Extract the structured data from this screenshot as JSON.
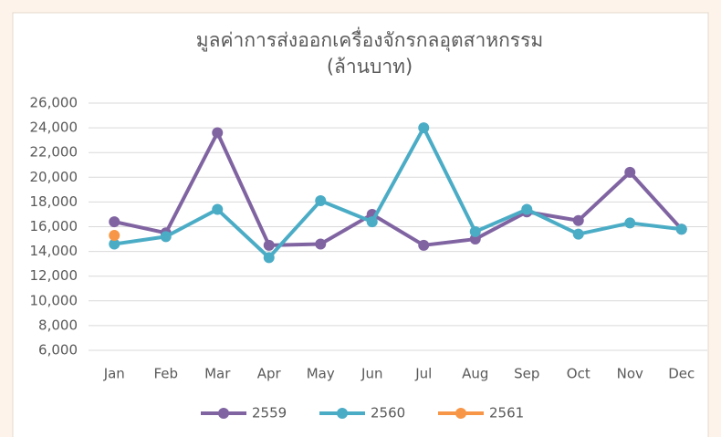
{
  "chart_data": {
    "type": "line",
    "title": "มูลค่าการส่งออกเครื่องจักรกลอุตสาหกรรม",
    "subtitle": "(ล้านบาท)",
    "categories": [
      "Jan",
      "Feb",
      "Mar",
      "Apr",
      "May",
      "Jun",
      "Jul",
      "Aug",
      "Sep",
      "Oct",
      "Nov",
      "Dec"
    ],
    "series": [
      {
        "name": "2559",
        "color": "#8064a2",
        "values": [
          16400,
          15500,
          23600,
          14500,
          14600,
          17000,
          14500,
          15000,
          17200,
          16500,
          20400,
          15800
        ]
      },
      {
        "name": "2560",
        "color": "#4bacc6",
        "values": [
          14600,
          15200,
          17400,
          13500,
          18100,
          16400,
          24000,
          15600,
          17400,
          15400,
          16300,
          15800
        ]
      },
      {
        "name": "2561",
        "color": "#f79646",
        "values": [
          15300,
          null,
          null,
          null,
          null,
          null,
          null,
          null,
          null,
          null,
          null,
          null
        ]
      }
    ],
    "ylim": [
      6000,
      26000
    ],
    "yticks": [
      {
        "value": 6000,
        "label": "6,000"
      },
      {
        "value": 8000,
        "label": "8,000"
      },
      {
        "value": 10000,
        "label": "10,000"
      },
      {
        "value": 12000,
        "label": "12,000"
      },
      {
        "value": 14000,
        "label": "14,000"
      },
      {
        "value": 16000,
        "label": "16,000"
      },
      {
        "value": 18000,
        "label": "18,000"
      },
      {
        "value": 20000,
        "label": "20,000"
      },
      {
        "value": 22000,
        "label": "22,000"
      },
      {
        "value": 24000,
        "label": "24,000"
      },
      {
        "value": 26000,
        "label": "26,000"
      }
    ],
    "grid": true,
    "legend": "bottom"
  }
}
